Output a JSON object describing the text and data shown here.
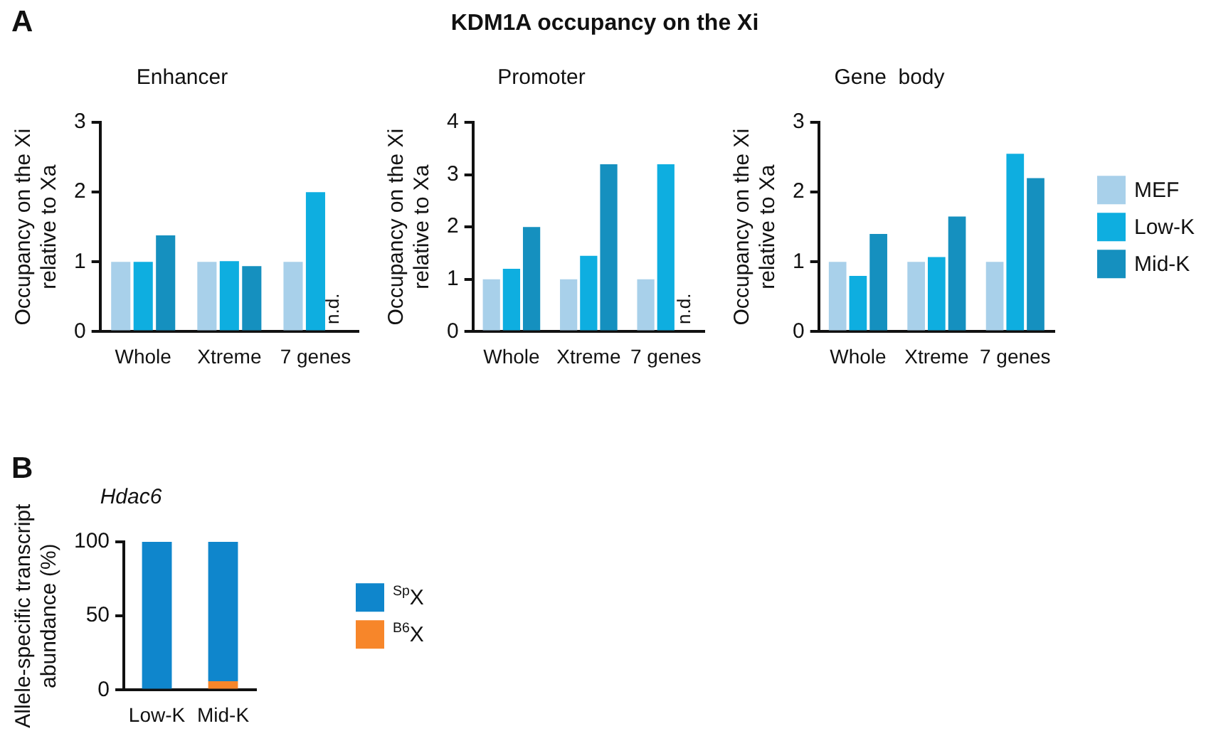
{
  "chart_data": [
    {
      "type": "bar",
      "title": "Enhancer",
      "ylabel": "Occupancy on the Xi relative to Xa",
      "categories": [
        "Whole",
        "Xtreme",
        "7 genes"
      ],
      "ylim": [
        0,
        3
      ],
      "yticks": [
        0,
        1,
        2,
        3
      ],
      "grid": false,
      "legend": false,
      "annotations": [
        "A",
        "KDM1A occupancy on the Xi",
        "n.d."
      ],
      "series": [
        {
          "color": "#a8d0ea",
          "values": [
            1,
            1,
            1
          ]
        },
        {
          "color": "#0eaee0",
          "values": [
            1,
            1.01,
            2.0
          ]
        },
        {
          "color": "#1590bf",
          "values": [
            1.38,
            0.94,
            null
          ]
        }
      ]
    },
    {
      "type": "bar",
      "title": "Promoter",
      "ylabel": "Occupancy on the Xi relative to Xa",
      "categories": [
        "Whole",
        "Xtreme",
        "7 genes"
      ],
      "ylim": [
        0,
        4
      ],
      "yticks": [
        0,
        1,
        2,
        3,
        4
      ],
      "grid": false,
      "legend": false,
      "annotations": [
        "n.d."
      ],
      "series": [
        {
          "color": "#a8d0ea",
          "values": [
            1,
            1,
            1
          ]
        },
        {
          "color": "#0eaee0",
          "values": [
            1.2,
            1.45,
            3.2
          ]
        },
        {
          "color": "#1590bf",
          "values": [
            2.0,
            3.2,
            null
          ]
        }
      ]
    },
    {
      "type": "bar",
      "title": "Gene  body",
      "ylabel": "Occupancy on the Xi relative to Xa",
      "categories": [
        "Whole",
        "Xtreme",
        "7 genes"
      ],
      "ylim": [
        0,
        3
      ],
      "yticks": [
        0,
        1,
        2,
        3
      ],
      "grid": false,
      "legend": "right",
      "series": [
        {
          "name": "MEF",
          "color": "#a8d0ea",
          "values": [
            1,
            1,
            1
          ]
        },
        {
          "name": "Low-K",
          "color": "#0eaee0",
          "values": [
            0.8,
            1.07,
            2.55
          ]
        },
        {
          "name": "Mid-K",
          "color": "#1590bf",
          "values": [
            1.4,
            1.65,
            2.2
          ]
        }
      ]
    },
    {
      "type": "bar",
      "title": "Hdac6",
      "ylabel": "Allele-specific transcript abundance (%)",
      "categories": [
        "Low-K",
        "Mid-K"
      ],
      "ylim": [
        0,
        100
      ],
      "yticks": [
        0,
        50,
        100
      ],
      "grid": false,
      "legend": "right",
      "stacked": true,
      "annotations": [
        "B"
      ],
      "series": [
        {
          "name": "$^{B6}$X",
          "color": "#f7862a",
          "values": [
            0,
            6
          ]
        },
        {
          "name": "$^{Sp}$X",
          "color": "#0f86cc",
          "values": [
            100,
            94
          ]
        }
      ]
    }
  ]
}
